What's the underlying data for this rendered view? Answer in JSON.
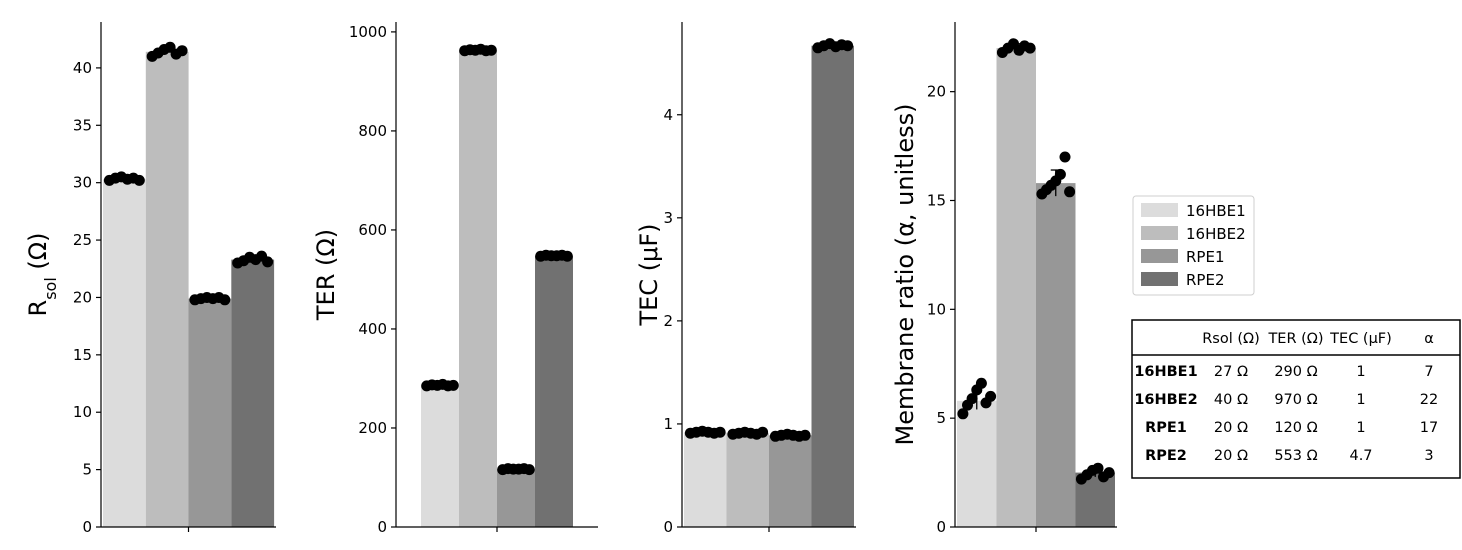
{
  "chart_data": {
    "type": "bar",
    "colors": {
      "16HBE1": "#dcdcdc",
      "16HBE2": "#bdbdbd",
      "RPE1": "#979797",
      "RPE2": "#717171",
      "points": "#000000"
    },
    "legend": {
      "placement": "right",
      "entries": [
        "16HBE1",
        "16HBE2",
        "RPE1",
        "RPE2"
      ]
    },
    "panels": [
      {
        "ylabel_main": "R",
        "ylabel_sub": "sol",
        "ylabel_rest": " (Ω)",
        "ylim": [
          0,
          44
        ],
        "ticks": [
          "0",
          "5",
          "10",
          "15",
          "20",
          "25",
          "30",
          "35",
          "40"
        ],
        "series": [
          {
            "name": "16HBE1",
            "value": 30.3,
            "points": [
              30.2,
              30.4,
              30.5,
              30.3,
              30.4,
              30.2
            ]
          },
          {
            "name": "16HBE2",
            "value": 41.4,
            "points": [
              41.0,
              41.3,
              41.6,
              41.8,
              41.2,
              41.5
            ]
          },
          {
            "name": "RPE1",
            "value": 19.9,
            "points": [
              19.8,
              19.9,
              20.0,
              19.9,
              20.0,
              19.8
            ]
          },
          {
            "name": "RPE2",
            "value": 23.3,
            "points": [
              23.0,
              23.2,
              23.5,
              23.3,
              23.6,
              23.1
            ]
          }
        ]
      },
      {
        "ylabel_main": "TER (Ω)",
        "ylabel_sub": "",
        "ylabel_rest": "",
        "ylim": [
          0,
          1020
        ],
        "ticks": [
          "0",
          "200",
          "400",
          "600",
          "800",
          "1000"
        ],
        "series": [
          {
            "name": "16HBE1",
            "value": 286,
            "points": [
              285,
              287,
              286,
              288,
              285,
              286
            ]
          },
          {
            "name": "16HBE2",
            "value": 963,
            "points": [
              962,
              964,
              963,
              965,
              962,
              963
            ]
          },
          {
            "name": "RPE1",
            "value": 117,
            "points": [
              116,
              118,
              117,
              117,
              118,
              116
            ]
          },
          {
            "name": "RPE2",
            "value": 548,
            "points": [
              547,
              549,
              548,
              548,
              549,
              547
            ]
          }
        ]
      },
      {
        "ylabel_main": "TEC (μF)",
        "ylabel_sub": "",
        "ylabel_rest": "",
        "ylim": [
          0,
          4.9
        ],
        "ticks": [
          "0",
          "1",
          "2",
          "3",
          "4"
        ],
        "series": [
          {
            "name": "16HBE1",
            "value": 0.92,
            "points": [
              0.91,
              0.92,
              0.93,
              0.92,
              0.91,
              0.92
            ]
          },
          {
            "name": "16HBE2",
            "value": 0.91,
            "points": [
              0.9,
              0.91,
              0.92,
              0.91,
              0.9,
              0.92
            ]
          },
          {
            "name": "RPE1",
            "value": 0.89,
            "points": [
              0.88,
              0.89,
              0.9,
              0.89,
              0.88,
              0.89
            ]
          },
          {
            "name": "RPE2",
            "value": 4.67,
            "points": [
              4.65,
              4.67,
              4.69,
              4.66,
              4.68,
              4.67
            ]
          }
        ]
      },
      {
        "ylabel_main": "Membrane ratio (α, unitless)",
        "ylabel_sub": "",
        "ylabel_rest": "",
        "ylim": [
          0,
          23.2
        ],
        "ticks": [
          "0",
          "5",
          "10",
          "15",
          "20"
        ],
        "series": [
          {
            "name": "16HBE1",
            "value": 5.8,
            "error": 0.4,
            "points": [
              5.2,
              5.6,
              5.9,
              6.3,
              6.6,
              5.7,
              6.0
            ]
          },
          {
            "name": "16HBE2",
            "value": 22.0,
            "error": 0.2,
            "points": [
              21.8,
              22.0,
              22.2,
              21.9,
              22.1,
              22.0
            ]
          },
          {
            "name": "RPE1",
            "value": 15.8,
            "error": 0.6,
            "points": [
              15.3,
              15.5,
              15.7,
              15.9,
              16.2,
              17.0,
              15.4
            ]
          },
          {
            "name": "RPE2",
            "value": 2.5,
            "error": 0.2,
            "points": [
              2.2,
              2.4,
              2.6,
              2.7,
              2.3,
              2.5
            ]
          }
        ]
      }
    ],
    "table": {
      "columns": [
        "",
        "Rsol (Ω)",
        "TER (Ω)",
        "TEC (μF)",
        "α"
      ],
      "rows": [
        [
          "16HBE1",
          "27 Ω",
          "290 Ω",
          "1",
          "7"
        ],
        [
          "16HBE2",
          "40 Ω",
          "970 Ω",
          "1",
          "22"
        ],
        [
          "RPE1",
          "20 Ω",
          "120 Ω",
          "1",
          "17"
        ],
        [
          "RPE2",
          "20 Ω",
          "553 Ω",
          "4.7",
          "3"
        ]
      ]
    }
  }
}
